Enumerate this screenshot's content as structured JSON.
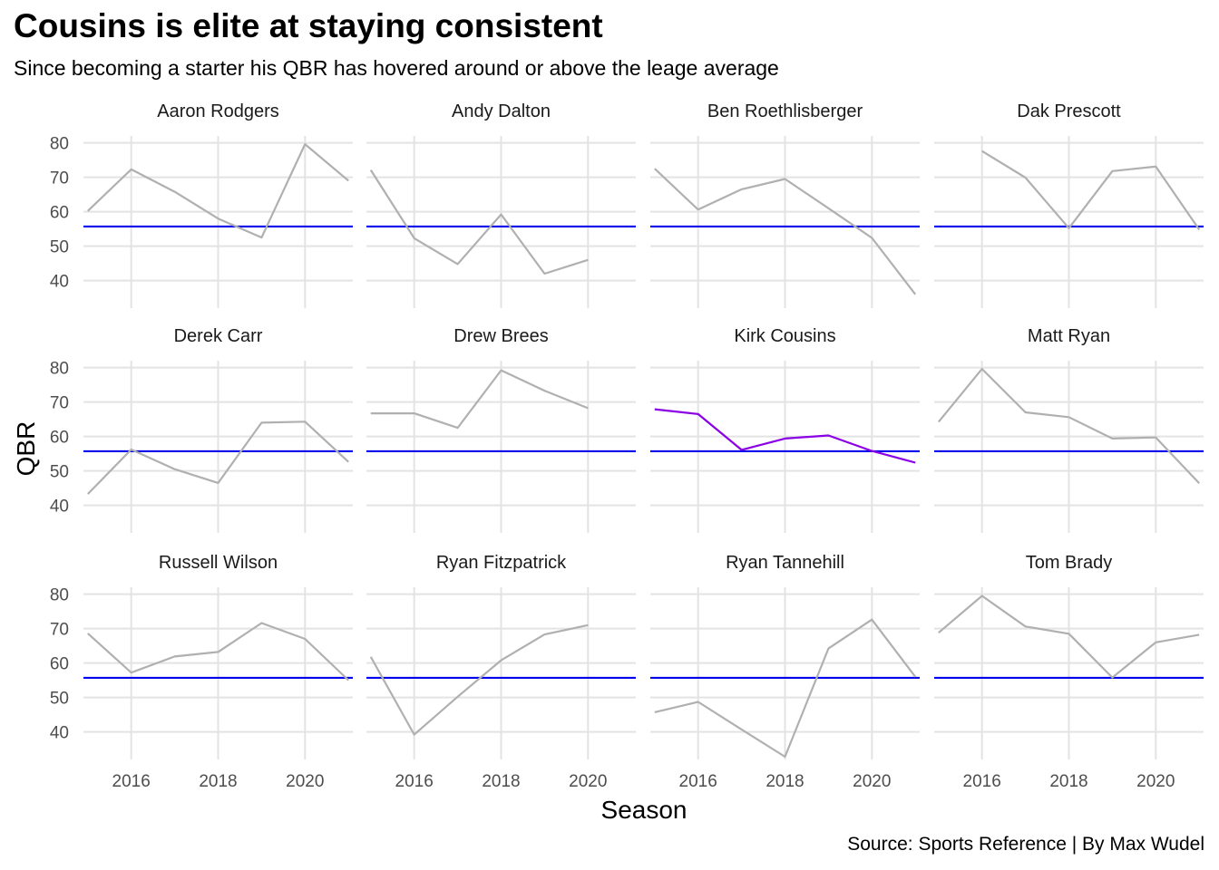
{
  "title": "Cousins is elite at staying consistent",
  "subtitle": "Since becoming a starter his QBR has hovered around or above the leage average",
  "caption": "Source: Sports Reference | By Max Wudel",
  "colors": {
    "background": "#ffffff",
    "grid": "#e3e3e3",
    "series_default": "#b0b0b0",
    "series_highlight": "#8a00e6",
    "reference_line": "#0000ee",
    "axis_text": "#4d4d4d"
  },
  "chart_data": {
    "type": "line",
    "layout": "facet grid, 3 rows x 4 columns, shared axes",
    "xlabel": "Season",
    "ylabel": "QBR",
    "x_ticks": [
      2016,
      2018,
      2020
    ],
    "y_ticks": [
      40,
      50,
      60,
      70,
      80
    ],
    "xlim": [
      2014.9,
      2021.1
    ],
    "ylim": [
      32,
      82
    ],
    "reference_line": {
      "y": 55.7
    },
    "highlight": "Kirk Cousins",
    "grid": true,
    "x": [
      2015,
      2016,
      2017,
      2018,
      2019,
      2020,
      2021
    ],
    "series": [
      {
        "name": "Aaron Rodgers",
        "values": [
          60.2,
          72.3,
          65.8,
          58.0,
          52.5,
          79.6,
          69.0
        ]
      },
      {
        "name": "Andy Dalton",
        "values": [
          72.1,
          52.3,
          44.8,
          59.2,
          42.0,
          46.0,
          null
        ]
      },
      {
        "name": "Ben Roethlisberger",
        "values": [
          72.5,
          60.6,
          66.5,
          69.5,
          61.0,
          52.4,
          36.0
        ]
      },
      {
        "name": "Dak Prescott",
        "values": [
          null,
          77.6,
          69.9,
          55.2,
          71.8,
          73.1,
          54.8
        ]
      },
      {
        "name": "Derek Carr",
        "values": [
          43.3,
          56.2,
          50.5,
          46.5,
          64.0,
          64.3,
          52.6
        ]
      },
      {
        "name": "Drew Brees",
        "values": [
          66.7,
          66.7,
          62.5,
          79.2,
          73.3,
          68.2,
          null
        ]
      },
      {
        "name": "Kirk Cousins",
        "values": [
          67.9,
          66.5,
          56.1,
          59.4,
          60.3,
          55.8,
          52.4
        ]
      },
      {
        "name": "Matt Ryan",
        "values": [
          64.2,
          79.6,
          67.0,
          65.6,
          59.4,
          59.7,
          46.4
        ]
      },
      {
        "name": "Russell Wilson",
        "values": [
          68.6,
          57.2,
          61.9,
          63.2,
          71.6,
          67.0,
          55.0
        ]
      },
      {
        "name": "Ryan Fitzpatrick",
        "values": [
          61.8,
          39.2,
          50.2,
          60.8,
          68.3,
          71.0,
          null
        ]
      },
      {
        "name": "Ryan Tannehill",
        "values": [
          45.7,
          48.7,
          40.7,
          32.8,
          64.2,
          72.6,
          56.0
        ]
      },
      {
        "name": "Tom Brady",
        "values": [
          68.8,
          79.5,
          70.6,
          68.5,
          55.8,
          66.0,
          68.2
        ]
      }
    ]
  }
}
